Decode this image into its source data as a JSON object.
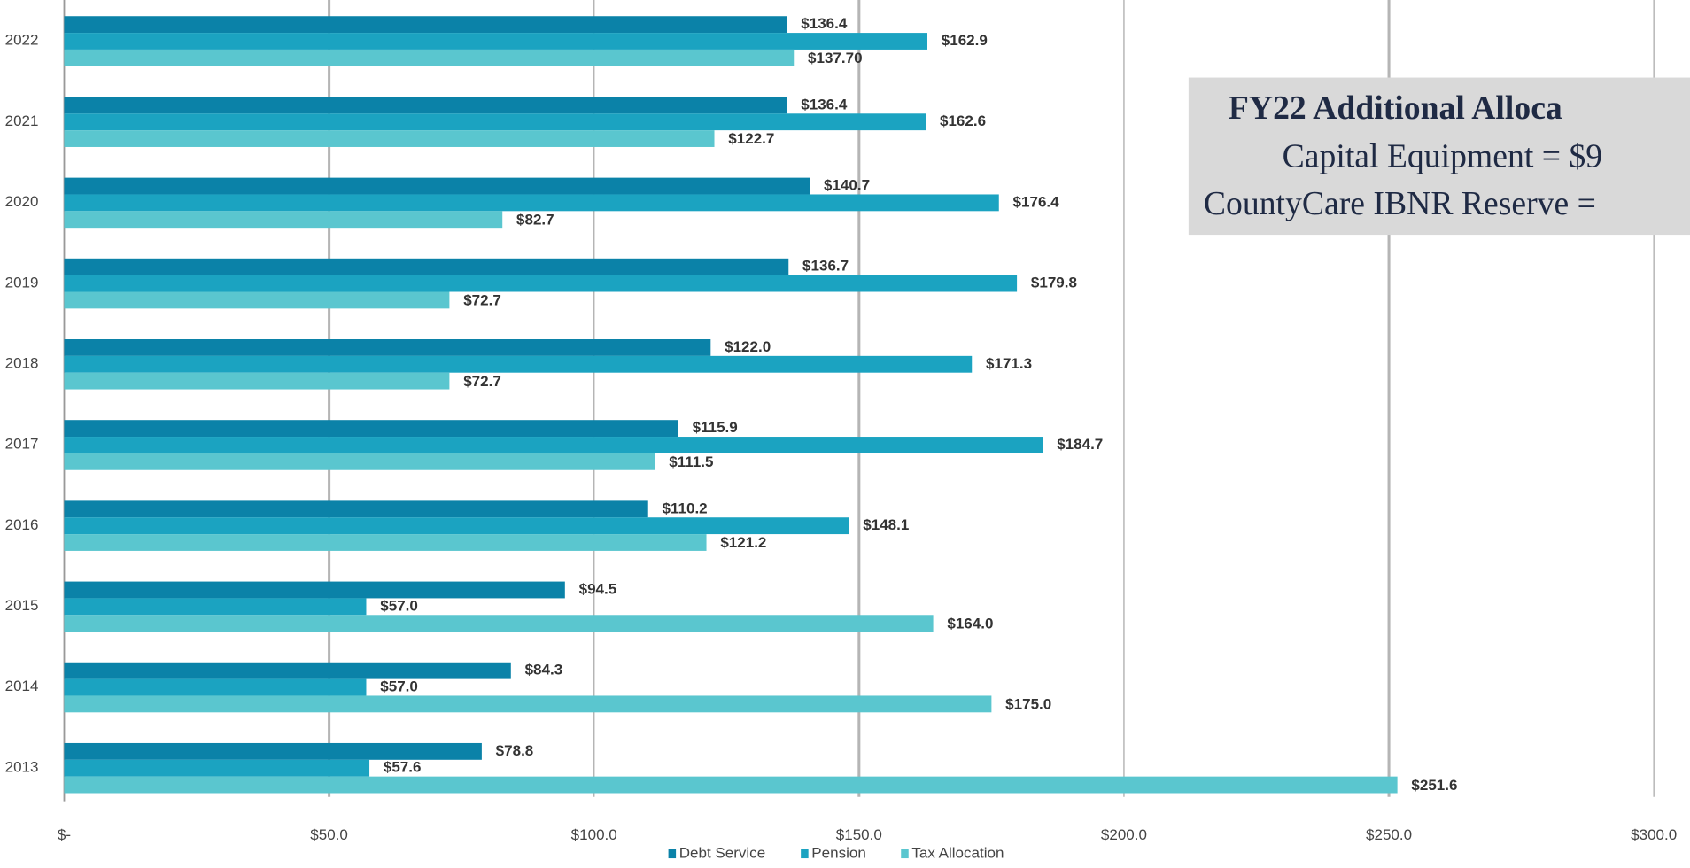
{
  "chart_data": {
    "type": "bar",
    "orientation": "horizontal",
    "categories": [
      "2022",
      "2021",
      "2020",
      "2019",
      "2018",
      "2017",
      "2016",
      "2015",
      "2014",
      "2013"
    ],
    "series": [
      {
        "name": "Debt Service",
        "color": "#0b82a8",
        "values": [
          136.4,
          136.4,
          140.7,
          136.7,
          122.0,
          115.9,
          110.2,
          94.5,
          84.3,
          78.8
        ],
        "value_labels": [
          "$136.4",
          "$136.4",
          "$140.7",
          "$136.7",
          "$122.0",
          "$115.9",
          "$110.2",
          "$94.5",
          "$84.3",
          "$78.8"
        ]
      },
      {
        "name": "Pension",
        "color": "#1ba3c1",
        "values": [
          162.9,
          162.6,
          176.4,
          179.8,
          171.3,
          184.7,
          148.1,
          57.0,
          57.0,
          57.6
        ],
        "value_labels": [
          "$162.9",
          "$162.6",
          "$176.4",
          "$179.8",
          "$171.3",
          "$184.7",
          "$148.1",
          "$57.0",
          "$57.0",
          "$57.6"
        ]
      },
      {
        "name": "Tax Allocation",
        "color": "#5ac6cf",
        "values": [
          137.7,
          122.7,
          82.7,
          72.7,
          72.7,
          111.5,
          121.2,
          164.0,
          175.0,
          251.6
        ],
        "value_labels": [
          "$137.70",
          "$122.7",
          "$82.7",
          "$72.7",
          "$72.7",
          "$111.5",
          "$121.2",
          "$164.0",
          "$175.0",
          "$251.6"
        ]
      }
    ],
    "xlim": [
      0,
      306.7
    ],
    "xticks": [
      {
        "value": 0,
        "label": "$-"
      },
      {
        "value": 50,
        "label": "$50.0"
      },
      {
        "value": 100,
        "label": "$100.0"
      },
      {
        "value": 150,
        "label": "$150.0"
      },
      {
        "value": 200,
        "label": "$200.0"
      },
      {
        "value": 250,
        "label": "$250.0"
      },
      {
        "value": 300,
        "label": "$300.0"
      }
    ],
    "grid": true,
    "legend": "bottom",
    "annotation": [
      "FY22 Additional Alloca",
      "Capital Equipment = $9",
      "CountyCare IBNR Reserve ="
    ]
  }
}
